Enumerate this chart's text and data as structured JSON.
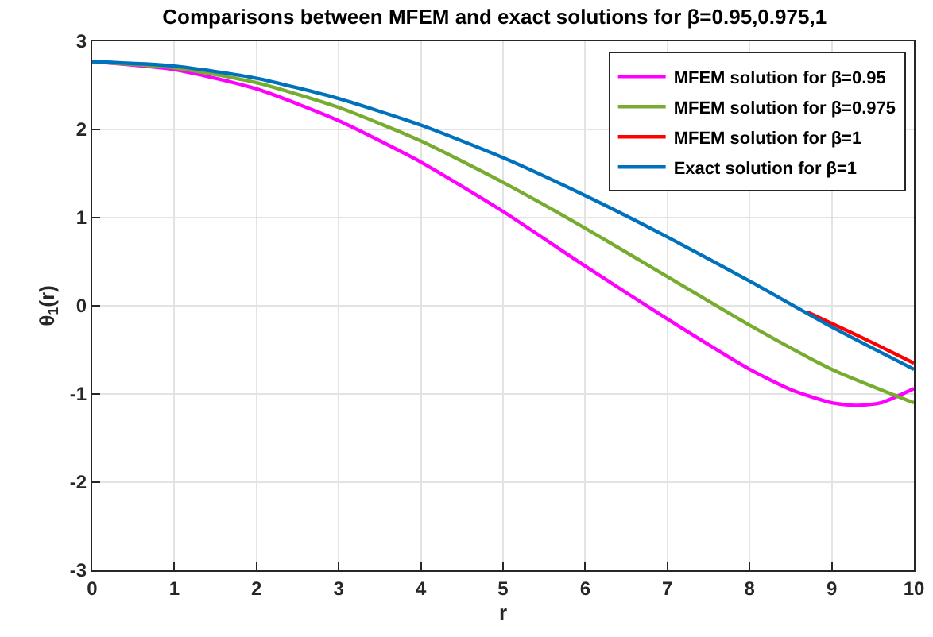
{
  "chart_data": {
    "type": "line",
    "title": "Comparisons between MFEM and exact solutions for β=0.95,0.975,1",
    "xlabel": "r",
    "ylabel": "θ$_{1}$(r)",
    "x": [
      0,
      1,
      2,
      3,
      4,
      5,
      6,
      7,
      8,
      9,
      10
    ],
    "series": [
      {
        "name": "MFEM solution for β=0.95",
        "color": "#ff00ff",
        "x": [
          0,
          1,
          2,
          3,
          4,
          5,
          6,
          7,
          8,
          8.5,
          9,
          9.3,
          9.6,
          10
        ],
        "values": [
          2.77,
          2.68,
          2.46,
          2.1,
          1.63,
          1.07,
          0.45,
          -0.15,
          -0.72,
          -0.95,
          -1.1,
          -1.13,
          -1.1,
          -0.94
        ]
      },
      {
        "name": "MFEM solution for β=0.975",
        "color": "#77ac30",
        "values": [
          2.77,
          2.7,
          2.53,
          2.25,
          1.87,
          1.4,
          0.88,
          0.33,
          -0.22,
          -0.72,
          -1.1
        ]
      },
      {
        "name": "MFEM solution for β=1",
        "color": "#ff0000",
        "x": [
          8.7,
          9,
          9.5,
          10
        ],
        "values": [
          -0.07,
          -0.2,
          -0.42,
          -0.65
        ]
      },
      {
        "name": "Exact solution for β=1",
        "color": "#0072bd",
        "values": [
          2.77,
          2.72,
          2.58,
          2.35,
          2.05,
          1.68,
          1.25,
          0.78,
          0.28,
          -0.24,
          -0.72
        ]
      }
    ],
    "xlim": [
      0,
      10
    ],
    "ylim": [
      -3,
      3
    ],
    "xticks": [
      0,
      1,
      2,
      3,
      4,
      5,
      6,
      7,
      8,
      9,
      10
    ],
    "yticks": [
      -3,
      -2,
      -1,
      0,
      1,
      2,
      3
    ],
    "grid": true,
    "legend": "top right",
    "marker": "none",
    "line_style": "solid"
  }
}
